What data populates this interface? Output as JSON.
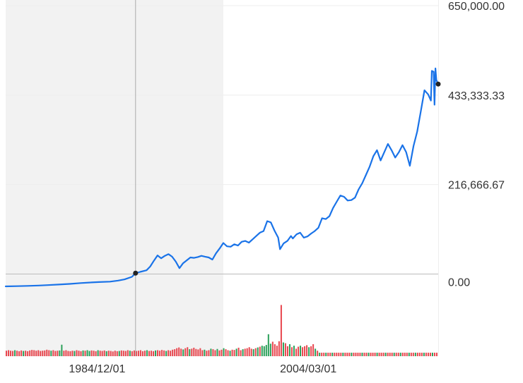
{
  "chart_data": {
    "type": "line",
    "header_text_partial": "…, …/…",
    "y_axis": {
      "ticks": [
        "650,000.00",
        "433,333.33",
        "216,666.67",
        "0.00"
      ],
      "tick_values": [
        650000,
        433333.33,
        216666.67,
        0
      ],
      "ylim": [
        -30000,
        650000
      ],
      "side": "right"
    },
    "x_axis": {
      "tick_labels": [
        "1984/12/01",
        "2004/03/01"
      ],
      "xlim": [
        "1979/03/01",
        "2018/08/01"
      ]
    },
    "highlighted_range": {
      "from": "1979/03/01",
      "to": "1999/01/01"
    },
    "crosshair": {
      "date": "1991/01/01",
      "value": 2000
    },
    "last_point": {
      "date": "2018/08/01",
      "value": 460000
    },
    "colors": {
      "line": "#1a73e8",
      "volume_up": "#2ca05a",
      "volume_down": "#e8474f",
      "shade": "#f2f2f2",
      "grid": "#eeeeee",
      "baseline": "#bbbbbb",
      "crosshair": "#aaaaaa"
    },
    "series": [
      {
        "values": [
          [
            "1979/03/01",
            -30000
          ],
          [
            "1980/03/01",
            -29500
          ],
          [
            "1981/03/01",
            -28800
          ],
          [
            "1982/03/01",
            -28000
          ],
          [
            "1983/01/01",
            -27000
          ],
          [
            "1984/01/01",
            -25500
          ],
          [
            "1985/01/01",
            -24000
          ],
          [
            "1986/01/01",
            -22000
          ],
          [
            "1987/01/01",
            -20500
          ],
          [
            "1987/09/01",
            -19500
          ],
          [
            "1988/09/01",
            -18500
          ],
          [
            "1989/06/01",
            -16000
          ],
          [
            "1990/01/01",
            -13000
          ],
          [
            "1990/09/01",
            -7000
          ],
          [
            "1991/01/01",
            2000
          ],
          [
            "1991/06/01",
            5000
          ],
          [
            "1992/01/01",
            9000
          ],
          [
            "1992/05/01",
            18000
          ],
          [
            "1992/09/01",
            32000
          ],
          [
            "1993/01/01",
            45000
          ],
          [
            "1993/05/01",
            38000
          ],
          [
            "1993/09/01",
            44000
          ],
          [
            "1994/01/01",
            48000
          ],
          [
            "1994/05/01",
            42000
          ],
          [
            "1994/09/01",
            30000
          ],
          [
            "1995/01/01",
            14000
          ],
          [
            "1995/05/01",
            26000
          ],
          [
            "1995/09/01",
            33000
          ],
          [
            "1996/01/01",
            40000
          ],
          [
            "1996/05/01",
            39000
          ],
          [
            "1996/09/01",
            41000
          ],
          [
            "1997/01/01",
            44000
          ],
          [
            "1997/05/01",
            42000
          ],
          [
            "1997/09/01",
            40000
          ],
          [
            "1998/01/01",
            35000
          ],
          [
            "1998/05/01",
            50000
          ],
          [
            "1998/09/01",
            62000
          ],
          [
            "1999/01/01",
            75000
          ],
          [
            "1999/05/01",
            67000
          ],
          [
            "1999/09/01",
            66000
          ],
          [
            "2000/01/01",
            72000
          ],
          [
            "2000/05/01",
            69000
          ],
          [
            "2000/09/01",
            78000
          ],
          [
            "2001/01/01",
            80000
          ],
          [
            "2001/05/01",
            76000
          ],
          [
            "2001/09/01",
            84000
          ],
          [
            "2002/01/01",
            92000
          ],
          [
            "2002/05/01",
            100000
          ],
          [
            "2002/09/01",
            104000
          ],
          [
            "2003/01/01",
            128000
          ],
          [
            "2003/05/01",
            125000
          ],
          [
            "2003/09/01",
            105000
          ],
          [
            "2004/01/01",
            88000
          ],
          [
            "2004/03/01",
            60000
          ],
          [
            "2004/07/01",
            74000
          ],
          [
            "2004/11/01",
            80000
          ],
          [
            "2005/03/01",
            92000
          ],
          [
            "2005/05/01",
            86000
          ],
          [
            "2005/09/01",
            96000
          ],
          [
            "2006/01/01",
            100000
          ],
          [
            "2006/05/01",
            88000
          ],
          [
            "2006/09/01",
            91000
          ],
          [
            "2007/01/01",
            98000
          ],
          [
            "2007/05/01",
            104000
          ],
          [
            "2007/09/01",
            112000
          ],
          [
            "2008/01/01",
            135000
          ],
          [
            "2008/05/01",
            133000
          ],
          [
            "2008/09/01",
            140000
          ],
          [
            "2009/01/01",
            160000
          ],
          [
            "2009/05/01",
            175000
          ],
          [
            "2009/09/01",
            190000
          ],
          [
            "2010/01/01",
            187000
          ],
          [
            "2010/05/01",
            178000
          ],
          [
            "2010/09/01",
            179000
          ],
          [
            "2011/01/01",
            185000
          ],
          [
            "2011/05/01",
            205000
          ],
          [
            "2011/09/01",
            220000
          ],
          [
            "2012/01/01",
            240000
          ],
          [
            "2012/05/01",
            260000
          ],
          [
            "2012/09/01",
            285000
          ],
          [
            "2013/01/01",
            300000
          ],
          [
            "2013/05/01",
            275000
          ],
          [
            "2013/09/01",
            295000
          ],
          [
            "2014/01/01",
            315000
          ],
          [
            "2014/05/01",
            300000
          ],
          [
            "2014/09/01",
            282000
          ],
          [
            "2015/01/01",
            295000
          ],
          [
            "2015/05/01",
            312000
          ],
          [
            "2015/09/01",
            295000
          ],
          [
            "2016/01/01",
            262000
          ],
          [
            "2016/05/01",
            310000
          ],
          [
            "2016/09/01",
            345000
          ],
          [
            "2017/01/01",
            395000
          ],
          [
            "2017/05/01",
            445000
          ],
          [
            "2017/09/01",
            435000
          ],
          [
            "2017/12/01",
            420000
          ],
          [
            "2018/01/01",
            492000
          ],
          [
            "2018/03/01",
            490000
          ],
          [
            "2018/04/01",
            410000
          ],
          [
            "2018/05/01",
            498000
          ],
          [
            "2018/06/01",
            470000
          ],
          [
            "2018/08/01",
            460000
          ]
        ]
      }
    ],
    "volume": {
      "ylim": [
        0,
        240
      ],
      "bars": [
        [
          22,
          "d"
        ],
        [
          24,
          "d"
        ],
        [
          22,
          "d"
        ],
        [
          21,
          "d"
        ],
        [
          24,
          "u"
        ],
        [
          22,
          "d"
        ],
        [
          20,
          "d"
        ],
        [
          23,
          "d"
        ],
        [
          21,
          "u"
        ],
        [
          22,
          "d"
        ],
        [
          20,
          "d"
        ],
        [
          23,
          "d"
        ],
        [
          25,
          "d"
        ],
        [
          24,
          "d"
        ],
        [
          22,
          "d"
        ],
        [
          24,
          "d"
        ],
        [
          21,
          "d"
        ],
        [
          22,
          "d"
        ],
        [
          23,
          "d"
        ],
        [
          26,
          "d"
        ],
        [
          24,
          "d"
        ],
        [
          22,
          "u"
        ],
        [
          24,
          "d"
        ],
        [
          21,
          "d"
        ],
        [
          22,
          "d"
        ],
        [
          23,
          "u"
        ],
        [
          46,
          "u"
        ],
        [
          22,
          "d"
        ],
        [
          24,
          "d"
        ],
        [
          21,
          "d"
        ],
        [
          20,
          "d"
        ],
        [
          22,
          "d"
        ],
        [
          21,
          "u"
        ],
        [
          24,
          "d"
        ],
        [
          22,
          "d"
        ],
        [
          20,
          "d"
        ],
        [
          23,
          "u"
        ],
        [
          22,
          "d"
        ],
        [
          24,
          "u"
        ],
        [
          21,
          "u"
        ],
        [
          23,
          "d"
        ],
        [
          22,
          "d"
        ],
        [
          20,
          "d"
        ],
        [
          24,
          "u"
        ],
        [
          22,
          "d"
        ],
        [
          21,
          "d"
        ],
        [
          23,
          "d"
        ],
        [
          20,
          "u"
        ],
        [
          22,
          "d"
        ],
        [
          21,
          "d"
        ],
        [
          19,
          "d"
        ],
        [
          22,
          "d"
        ],
        [
          20,
          "d"
        ],
        [
          21,
          "u"
        ],
        [
          23,
          "d"
        ],
        [
          22,
          "d"
        ],
        [
          21,
          "d"
        ],
        [
          24,
          "d"
        ],
        [
          22,
          "u"
        ],
        [
          20,
          "d"
        ],
        [
          23,
          "d"
        ],
        [
          21,
          "d"
        ],
        [
          22,
          "d"
        ],
        [
          24,
          "d"
        ],
        [
          20,
          "d"
        ],
        [
          22,
          "d"
        ],
        [
          24,
          "u"
        ],
        [
          21,
          "d"
        ],
        [
          22,
          "d"
        ],
        [
          20,
          "d"
        ],
        [
          23,
          "u"
        ],
        [
          24,
          "d"
        ],
        [
          22,
          "d"
        ],
        [
          25,
          "d"
        ],
        [
          23,
          "d"
        ],
        [
          21,
          "u"
        ],
        [
          24,
          "d"
        ],
        [
          22,
          "d"
        ],
        [
          26,
          "d"
        ],
        [
          28,
          "d"
        ],
        [
          32,
          "d"
        ],
        [
          35,
          "d"
        ],
        [
          30,
          "d"
        ],
        [
          27,
          "u"
        ],
        [
          32,
          "d"
        ],
        [
          36,
          "d"
        ],
        [
          28,
          "u"
        ],
        [
          30,
          "d"
        ],
        [
          34,
          "d"
        ],
        [
          29,
          "d"
        ],
        [
          27,
          "d"
        ],
        [
          32,
          "d"
        ],
        [
          24,
          "d"
        ],
        [
          26,
          "u"
        ],
        [
          22,
          "d"
        ],
        [
          24,
          "d"
        ],
        [
          30,
          "u"
        ],
        [
          28,
          "d"
        ],
        [
          24,
          "d"
        ],
        [
          29,
          "u"
        ],
        [
          23,
          "d"
        ],
        [
          26,
          "d"
        ],
        [
          32,
          "u"
        ],
        [
          28,
          "d"
        ],
        [
          24,
          "d"
        ],
        [
          22,
          "u"
        ],
        [
          26,
          "d"
        ],
        [
          25,
          "d"
        ],
        [
          30,
          "u"
        ],
        [
          34,
          "d"
        ],
        [
          24,
          "d"
        ],
        [
          28,
          "u"
        ],
        [
          30,
          "d"
        ],
        [
          32,
          "d"
        ],
        [
          36,
          "d"
        ],
        [
          30,
          "d"
        ],
        [
          28,
          "u"
        ],
        [
          32,
          "d"
        ],
        [
          35,
          "u"
        ],
        [
          38,
          "d"
        ],
        [
          42,
          "u"
        ],
        [
          40,
          "u"
        ],
        [
          45,
          "u"
        ],
        [
          88,
          "u"
        ],
        [
          50,
          "u"
        ],
        [
          58,
          "d"
        ],
        [
          48,
          "d"
        ],
        [
          42,
          "d"
        ],
        [
          60,
          "d"
        ],
        [
          205,
          "d"
        ],
        [
          55,
          "u"
        ],
        [
          52,
          "d"
        ],
        [
          40,
          "d"
        ],
        [
          48,
          "u"
        ],
        [
          36,
          "d"
        ],
        [
          42,
          "u"
        ],
        [
          30,
          "d"
        ],
        [
          38,
          "d"
        ],
        [
          42,
          "u"
        ],
        [
          36,
          "d"
        ],
        [
          40,
          "d"
        ],
        [
          44,
          "d"
        ],
        [
          36,
          "u"
        ],
        [
          40,
          "d"
        ],
        [
          48,
          "d"
        ],
        [
          30,
          "u"
        ],
        [
          22,
          "d"
        ],
        [
          14,
          "u"
        ],
        [
          14,
          "d"
        ],
        [
          14,
          "d"
        ],
        [
          14,
          "u"
        ],
        [
          14,
          "d"
        ],
        [
          14,
          "d"
        ],
        [
          14,
          "u"
        ],
        [
          14,
          "d"
        ],
        [
          14,
          "d"
        ],
        [
          14,
          "d"
        ],
        [
          14,
          "d"
        ],
        [
          14,
          "u"
        ],
        [
          14,
          "d"
        ],
        [
          14,
          "d"
        ],
        [
          14,
          "d"
        ],
        [
          14,
          "u"
        ],
        [
          14,
          "d"
        ],
        [
          14,
          "d"
        ],
        [
          14,
          "d"
        ],
        [
          14,
          "d"
        ],
        [
          14,
          "u"
        ],
        [
          14,
          "d"
        ],
        [
          14,
          "d"
        ],
        [
          14,
          "u"
        ],
        [
          14,
          "d"
        ],
        [
          14,
          "d"
        ],
        [
          14,
          "d"
        ],
        [
          14,
          "u"
        ],
        [
          14,
          "d"
        ],
        [
          14,
          "d"
        ],
        [
          14,
          "d"
        ],
        [
          14,
          "u"
        ],
        [
          14,
          "d"
        ],
        [
          14,
          "d"
        ],
        [
          14,
          "d"
        ],
        [
          14,
          "u"
        ],
        [
          14,
          "d"
        ],
        [
          14,
          "d"
        ],
        [
          14,
          "u"
        ],
        [
          14,
          "d"
        ],
        [
          14,
          "d"
        ],
        [
          14,
          "d"
        ],
        [
          14,
          "u"
        ],
        [
          14,
          "d"
        ],
        [
          14,
          "d"
        ],
        [
          14,
          "u"
        ],
        [
          14,
          "d"
        ],
        [
          14,
          "d"
        ],
        [
          14,
          "d"
        ],
        [
          14,
          "u"
        ],
        [
          14,
          "d"
        ],
        [
          14,
          "d"
        ],
        [
          14,
          "d"
        ],
        [
          14,
          "u"
        ],
        [
          14,
          "d"
        ],
        [
          14,
          "d"
        ]
      ]
    }
  }
}
